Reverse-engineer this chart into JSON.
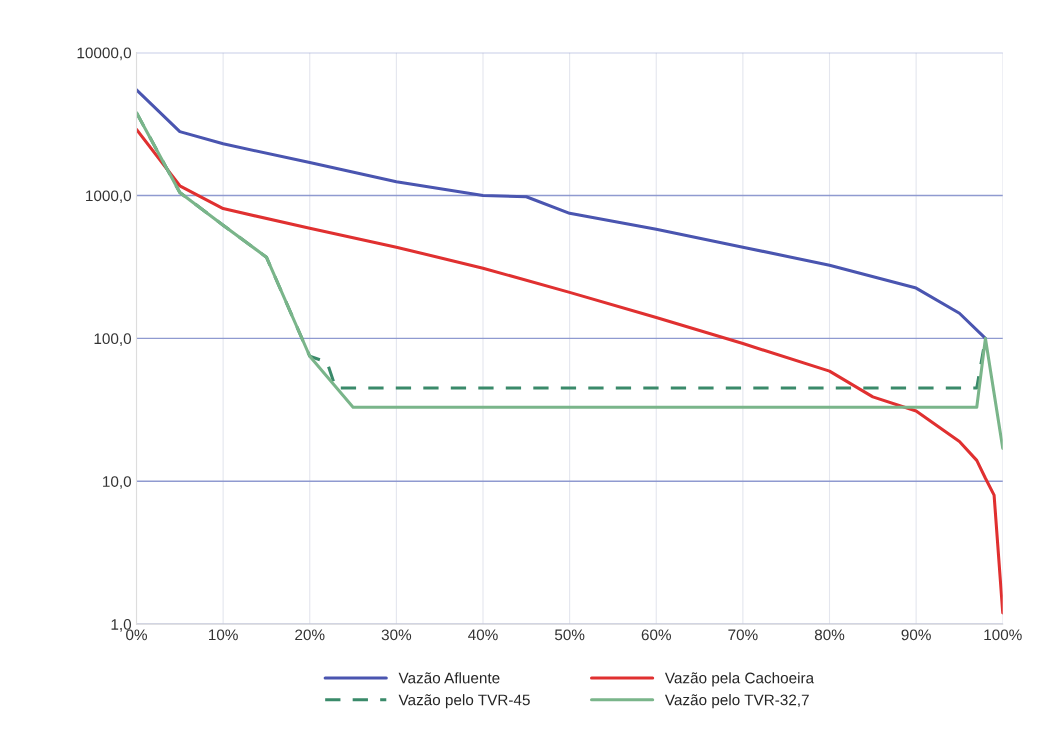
{
  "chart_data": {
    "type": "line",
    "log": "y",
    "grid": true,
    "legend": "bottom",
    "xlim": [
      0,
      100
    ],
    "xticks": [
      {
        "value": 0,
        "label": "0%"
      },
      {
        "value": 10,
        "label": "10%"
      },
      {
        "value": 20,
        "label": "20%"
      },
      {
        "value": 30,
        "label": "30%"
      },
      {
        "value": 40,
        "label": "40%"
      },
      {
        "value": 50,
        "label": "50%"
      },
      {
        "value": 60,
        "label": "60%"
      },
      {
        "value": 70,
        "label": "70%"
      },
      {
        "value": 80,
        "label": "80%"
      },
      {
        "value": 90,
        "label": "90%"
      },
      {
        "value": 100,
        "label": "100%"
      }
    ],
    "ylim": [
      1,
      10000
    ],
    "yticks": [
      {
        "value": 1,
        "label": "1,0"
      },
      {
        "value": 10,
        "label": "10,0"
      },
      {
        "value": 100,
        "label": "100,0"
      },
      {
        "value": 1000,
        "label": "1000,0"
      },
      {
        "value": 10000,
        "label": "10000,0"
      }
    ],
    "series": [
      {
        "name": "Vazão Afluente",
        "color": "#4a55b0",
        "line_style": "solid",
        "x": [
          0,
          5,
          10,
          20,
          30,
          40,
          45,
          50,
          60,
          70,
          80,
          90,
          95,
          98
        ],
        "values": [
          5500,
          2800,
          2300,
          1700,
          1250,
          1000,
          980,
          750,
          580,
          435,
          325,
          225,
          150,
          100
        ]
      },
      {
        "name": "Vazão pela Cachoeira",
        "color": "#e03030",
        "line_style": "solid",
        "x": [
          0,
          5,
          10,
          20,
          30,
          40,
          50,
          60,
          70,
          80,
          85,
          90,
          95,
          97,
          98,
          99,
          100
        ],
        "values": [
          2900,
          1170,
          810,
          590,
          435,
          310,
          210,
          140,
          92,
          59,
          39,
          31,
          19,
          14,
          10.5,
          8,
          1.2
        ]
      },
      {
        "name": "Vazão pelo TVR-45",
        "color": "#3a8a6a",
        "line_style": "dashed",
        "x": [
          0,
          5,
          10,
          15,
          20,
          22,
          23,
          97,
          98
        ],
        "values": [
          3800,
          1050,
          620,
          370,
          75,
          68,
          45,
          45,
          100
        ]
      },
      {
        "name": "Vazão pelo TVR-32,7",
        "color": "#7ab58a",
        "line_style": "solid",
        "x": [
          0,
          5,
          10,
          15,
          20,
          25,
          97,
          98,
          100
        ],
        "values": [
          3800,
          1050,
          620,
          370,
          75,
          33,
          33,
          100,
          17
        ]
      }
    ]
  }
}
